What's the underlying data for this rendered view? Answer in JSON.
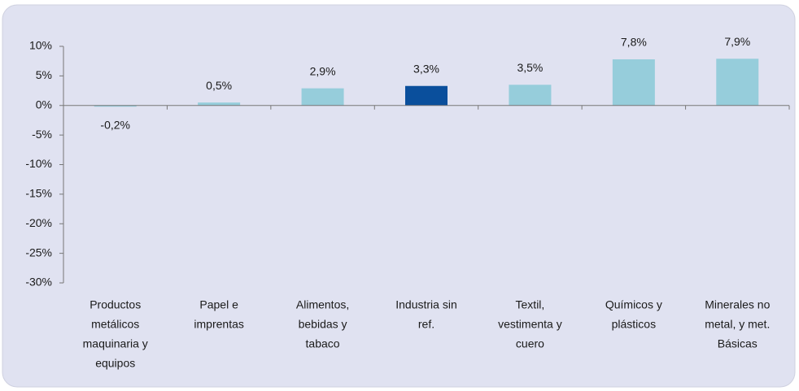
{
  "chart_data": {
    "type": "bar",
    "categories": [
      [
        "Productos",
        "metálicos",
        "maquinaria y",
        "equipos"
      ],
      [
        "Papel e",
        "imprentas"
      ],
      [
        "Alimentos,",
        "bebidas y",
        "tabaco"
      ],
      [
        "Industria sin",
        "ref."
      ],
      [
        "Textil,",
        "vestimenta y",
        "cuero"
      ],
      [
        "Químicos y",
        "plásticos"
      ],
      [
        "Minerales no",
        "metal, y met.",
        "Básicas"
      ]
    ],
    "values": [
      -0.2,
      0.5,
      2.9,
      3.3,
      3.5,
      7.8,
      7.9
    ],
    "value_labels": [
      "-0,2%",
      "0,5%",
      "2,9%",
      "3,3%",
      "3,5%",
      "7,8%",
      "7,9%"
    ],
    "colors": [
      "#96cddb",
      "#96cddb",
      "#96cddb",
      "#0a4f9c",
      "#96cddb",
      "#96cddb",
      "#96cddb"
    ],
    "ylim": [
      -30,
      10
    ],
    "yticks": [
      {
        "value": -30,
        "label": "-30%"
      },
      {
        "value": -25,
        "label": "-25%"
      },
      {
        "value": -20,
        "label": "-20%"
      },
      {
        "value": -15,
        "label": "-15%"
      },
      {
        "value": -10,
        "label": "-10%"
      },
      {
        "value": -5,
        "label": "-5%"
      },
      {
        "value": 0,
        "label": "0%"
      },
      {
        "value": 5,
        "label": "5%"
      },
      {
        "value": 10,
        "label": "10%"
      }
    ],
    "grid": false
  }
}
